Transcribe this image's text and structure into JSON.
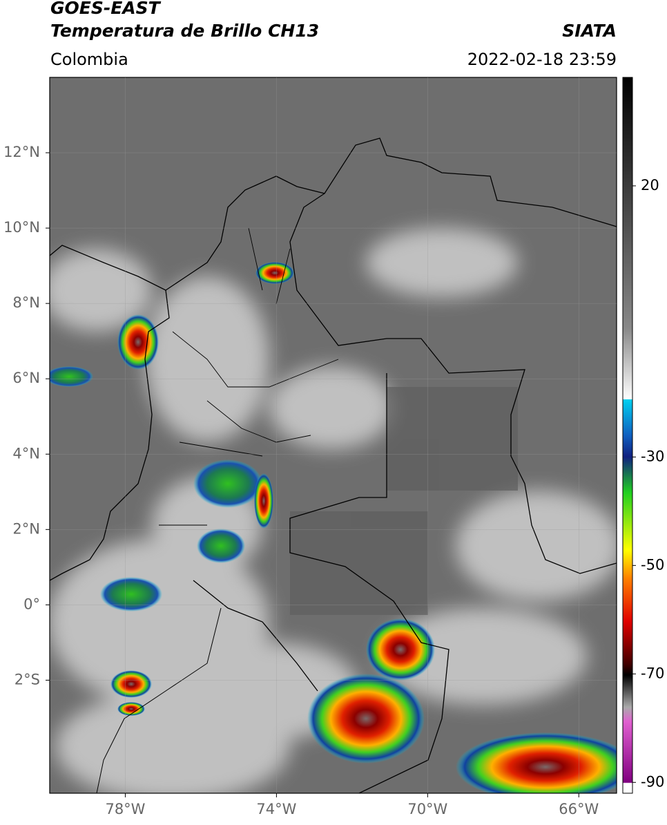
{
  "header": {
    "title": "GOES-EAST",
    "subtitle": "Temperatura de Brillo CH13",
    "region": "Colombia",
    "source": "SIATA",
    "datetime": "2022-02-18 23:59"
  },
  "map": {
    "xlim": [
      -80,
      -65
    ],
    "ylim": [
      -5,
      14
    ],
    "xticks": [
      {
        "value": -78,
        "label": "78°W"
      },
      {
        "value": -74,
        "label": "74°W"
      },
      {
        "value": -70,
        "label": "70°W"
      },
      {
        "value": -66,
        "label": "66°W"
      }
    ],
    "yticks": [
      {
        "value": 12,
        "label": "12°N"
      },
      {
        "value": 10,
        "label": "10°N"
      },
      {
        "value": 8,
        "label": "8°N"
      },
      {
        "value": 6,
        "label": "6°N"
      },
      {
        "value": 4,
        "label": "4°N"
      },
      {
        "value": 2,
        "label": "2°N"
      },
      {
        "value": 0,
        "label": "0°"
      },
      {
        "value": -2,
        "label": "2°S"
      }
    ]
  },
  "colorbar": {
    "lim": [
      -92,
      40
    ],
    "ticks": [
      20,
      -30,
      -50,
      -70,
      -90
    ]
  }
}
